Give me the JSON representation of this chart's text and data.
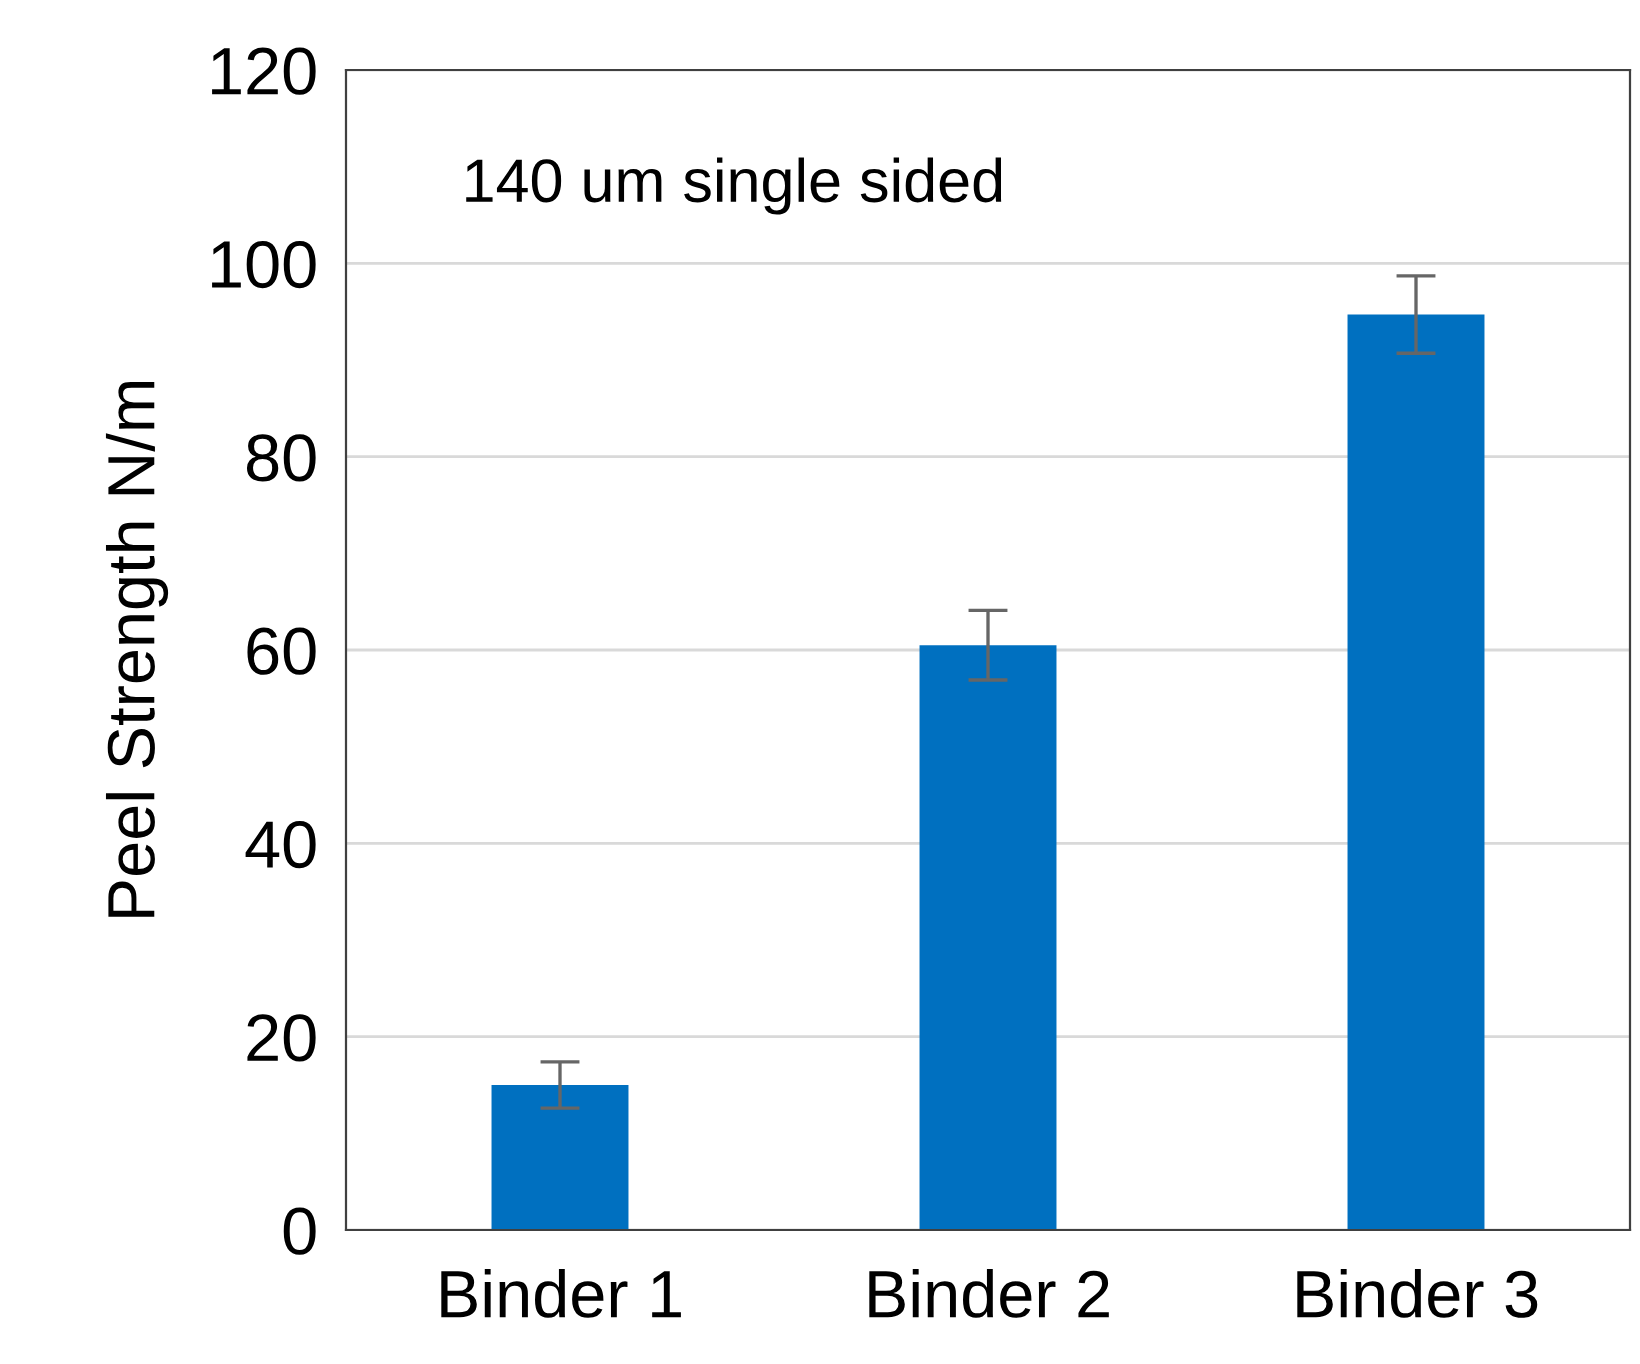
{
  "chart_data": {
    "type": "bar",
    "ylabel": "Peel Strength N/m",
    "categories": [
      "Binder 1",
      "Binder 2",
      "Binder 3"
    ],
    "values": [
      15,
      60.5,
      94.7
    ],
    "errors": [
      2.4,
      3.6,
      4
    ],
    "color": "#0070c0",
    "ylim": [
      0,
      120
    ],
    "yticks": [
      0,
      20,
      40,
      60,
      80,
      100,
      120
    ],
    "grid": "y",
    "annotations": [
      "140 um single sided"
    ]
  }
}
